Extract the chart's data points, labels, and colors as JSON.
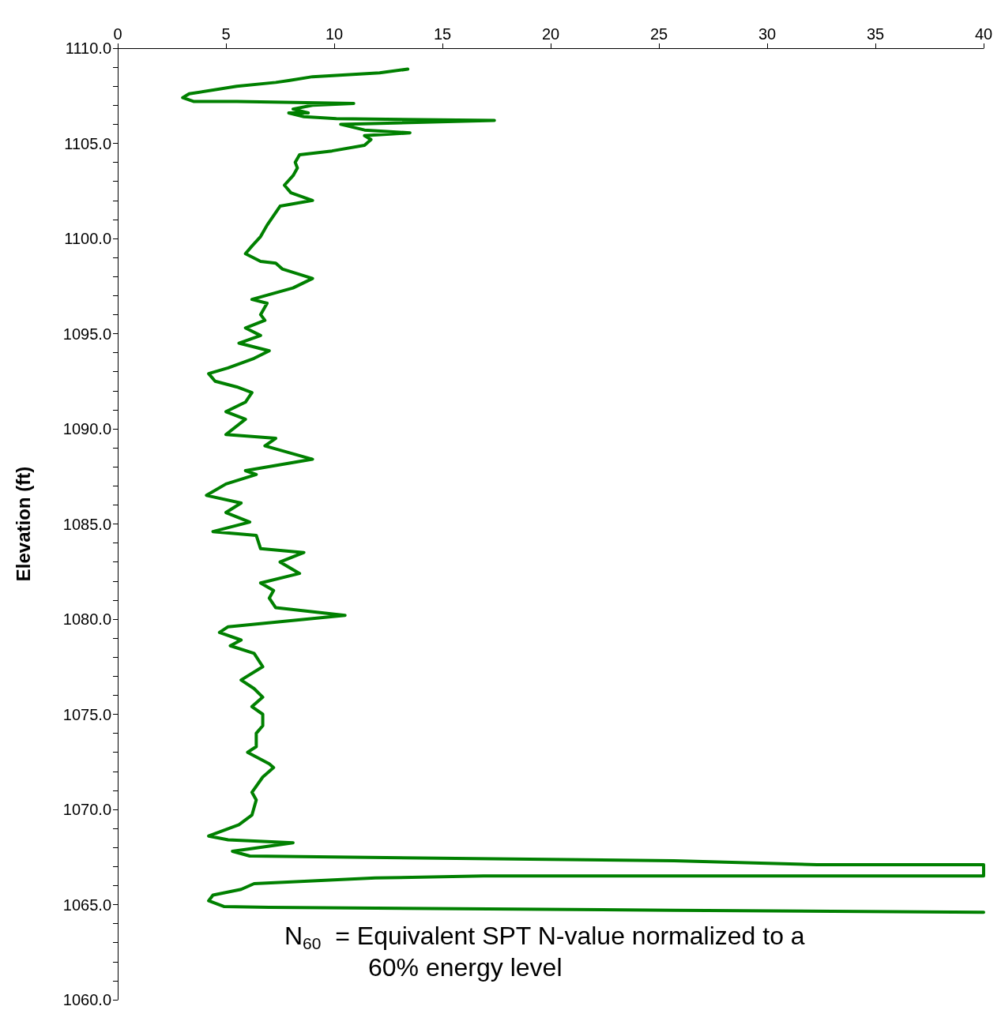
{
  "chart_data": {
    "type": "line",
    "ylabel": "Elevation (ft)",
    "xlim": [
      0,
      40
    ],
    "xticks": [
      0,
      5,
      10,
      15,
      20,
      25,
      30,
      35,
      40
    ],
    "ylim": [
      1060,
      1110
    ],
    "yticks": [
      {
        "value": 1060,
        "label": "1060.0"
      },
      {
        "value": 1065,
        "label": "1065.0"
      },
      {
        "value": 1070,
        "label": "1070.0"
      },
      {
        "value": 1075,
        "label": "1075.0"
      },
      {
        "value": 1080,
        "label": "1080.0"
      },
      {
        "value": 1085,
        "label": "1085.0"
      },
      {
        "value": 1090,
        "label": "1090.0"
      },
      {
        "value": 1095,
        "label": "1095.0"
      },
      {
        "value": 1100,
        "label": "1100.0"
      },
      {
        "value": 1105,
        "label": "1105.0"
      },
      {
        "value": 1110,
        "label": "1110.0"
      }
    ],
    "grid": false,
    "marker": "none",
    "line_style": "solid",
    "annotations": [
      "N$_{60}$  = Equivalent SPT N-value normalized to a 60% energy level"
    ],
    "series": [
      {
        "color": "#008000",
        "x": [
          13.4,
          12.1,
          9.0,
          7.9,
          7.3,
          5.5,
          3.3,
          3.0,
          3.5,
          5.5,
          10.9,
          9.0,
          8.1,
          8.8,
          7.9,
          8.6,
          10.1,
          17.4,
          10.3,
          11.4,
          13.5,
          11.4,
          11.7,
          11.4,
          9.9,
          8.4,
          8.2,
          8.3,
          8.1,
          7.7,
          8.0,
          9.0,
          7.5,
          7.2,
          6.9,
          6.6,
          6.2,
          5.9,
          6.6,
          7.3,
          7.6,
          9.0,
          8.1,
          6.2,
          6.9,
          6.6,
          6.8,
          5.9,
          6.6,
          5.6,
          7.0,
          6.3,
          5.1,
          4.2,
          4.5,
          5.5,
          6.2,
          5.9,
          5.0,
          5.9,
          5.0,
          7.3,
          6.8,
          9.0,
          5.9,
          6.4,
          5.0,
          4.1,
          5.7,
          5.0,
          6.1,
          4.4,
          6.4,
          6.6,
          8.6,
          7.5,
          8.4,
          6.6,
          7.2,
          7.0,
          7.3,
          10.5,
          5.1,
          4.7,
          5.7,
          5.2,
          6.3,
          6.7,
          5.7,
          6.3,
          6.7,
          6.2,
          6.7,
          6.7,
          6.4,
          6.4,
          6.0,
          7.0,
          7.2,
          6.7,
          6.2,
          6.4,
          6.2,
          5.6,
          4.2,
          5.1,
          8.1,
          5.3,
          6.1,
          25.7,
          32.3,
          40,
          40,
          16.9,
          11.9,
          6.3,
          5.7,
          4.4,
          4.2,
          4.9,
          7.0,
          25.7,
          40
        ],
        "values": [
          1108.9,
          1108.7,
          1108.5,
          1108.3,
          1108.2,
          1108.0,
          1107.6,
          1107.4,
          1107.2,
          1107.2,
          1107.1,
          1107.0,
          1106.8,
          1106.6,
          1106.6,
          1106.4,
          1106.3,
          1106.2,
          1106.0,
          1105.7,
          1105.55,
          1105.4,
          1105.2,
          1104.9,
          1104.6,
          1104.4,
          1104.0,
          1103.7,
          1103.3,
          1102.8,
          1102.4,
          1102.0,
          1101.7,
          1101.2,
          1100.7,
          1100.1,
          1099.6,
          1099.2,
          1098.8,
          1098.7,
          1098.4,
          1097.9,
          1097.4,
          1096.8,
          1096.6,
          1096.0,
          1095.7,
          1095.3,
          1094.9,
          1094.5,
          1094.1,
          1093.7,
          1093.2,
          1092.9,
          1092.5,
          1092.2,
          1091.9,
          1091.4,
          1090.9,
          1090.5,
          1089.7,
          1089.5,
          1089.1,
          1088.4,
          1087.8,
          1087.6,
          1087.1,
          1086.5,
          1086.1,
          1085.6,
          1085.1,
          1084.6,
          1084.4,
          1083.7,
          1083.5,
          1083.0,
          1082.4,
          1081.9,
          1081.5,
          1081.1,
          1080.6,
          1080.2,
          1079.6,
          1079.3,
          1078.9,
          1078.6,
          1078.2,
          1077.5,
          1076.8,
          1076.35,
          1075.9,
          1075.4,
          1075.0,
          1074.4,
          1074.0,
          1073.3,
          1073.0,
          1072.4,
          1072.2,
          1071.7,
          1070.9,
          1070.5,
          1069.7,
          1069.2,
          1068.6,
          1068.4,
          1068.25,
          1067.8,
          1067.55,
          1067.3,
          1067.1,
          1067.1,
          1066.5,
          1066.5,
          1066.4,
          1066.1,
          1065.8,
          1065.5,
          1065.2,
          1064.9,
          1064.85,
          1064.7,
          1064.6
        ]
      }
    ]
  }
}
